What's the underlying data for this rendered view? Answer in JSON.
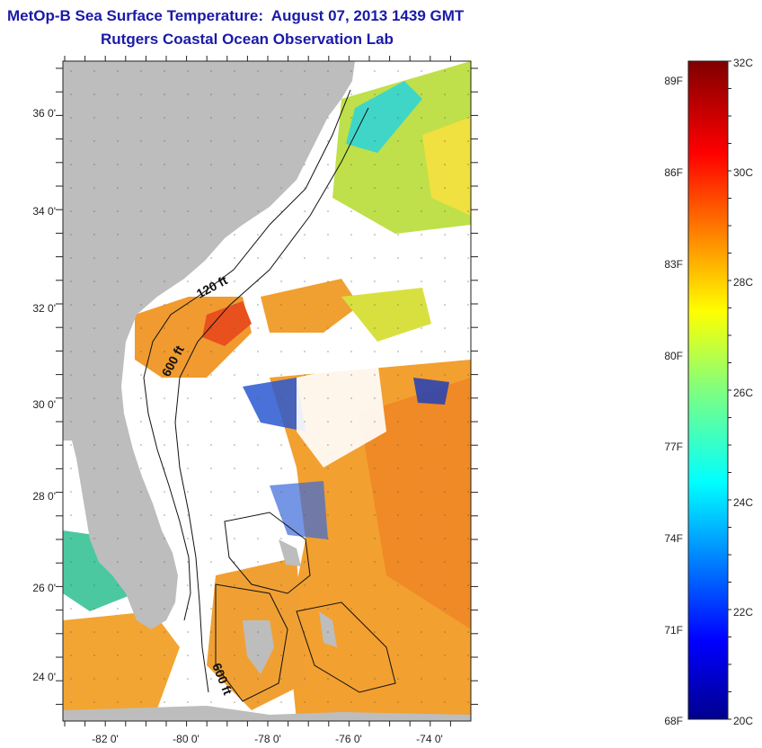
{
  "title": "MetOp-B Sea Surface Temperature:  August 07, 2013 1439 GMT",
  "subtitle": "Rutgers Coastal Ocean Observation Lab",
  "map": {
    "lon_range": [
      -83,
      -73
    ],
    "lat_range": [
      23,
      37
    ],
    "lat_ticks": [
      "36 0'",
      "34 0'",
      "32 0'",
      "30 0'",
      "28 0'",
      "26 0'",
      "24 0'"
    ],
    "lon_ticks": [
      "-82 0'",
      "-80 0'",
      "-78 0'",
      "-76 0'",
      "-74 0'"
    ],
    "contour_labels": [
      "120 ft",
      "600 ft",
      "600 ft"
    ],
    "colors": {
      "land": "#bdbdbd",
      "cloud": "#ffffff",
      "contour": "#111111"
    }
  },
  "colorbar": {
    "celsius_labels": [
      "32C",
      "30C",
      "28C",
      "26C",
      "24C",
      "22C",
      "20C"
    ],
    "fahrenheit_labels": [
      "89F",
      "86F",
      "83F",
      "80F",
      "77F",
      "74F",
      "71F",
      "68F"
    ],
    "range_c": [
      20,
      32
    ]
  }
}
